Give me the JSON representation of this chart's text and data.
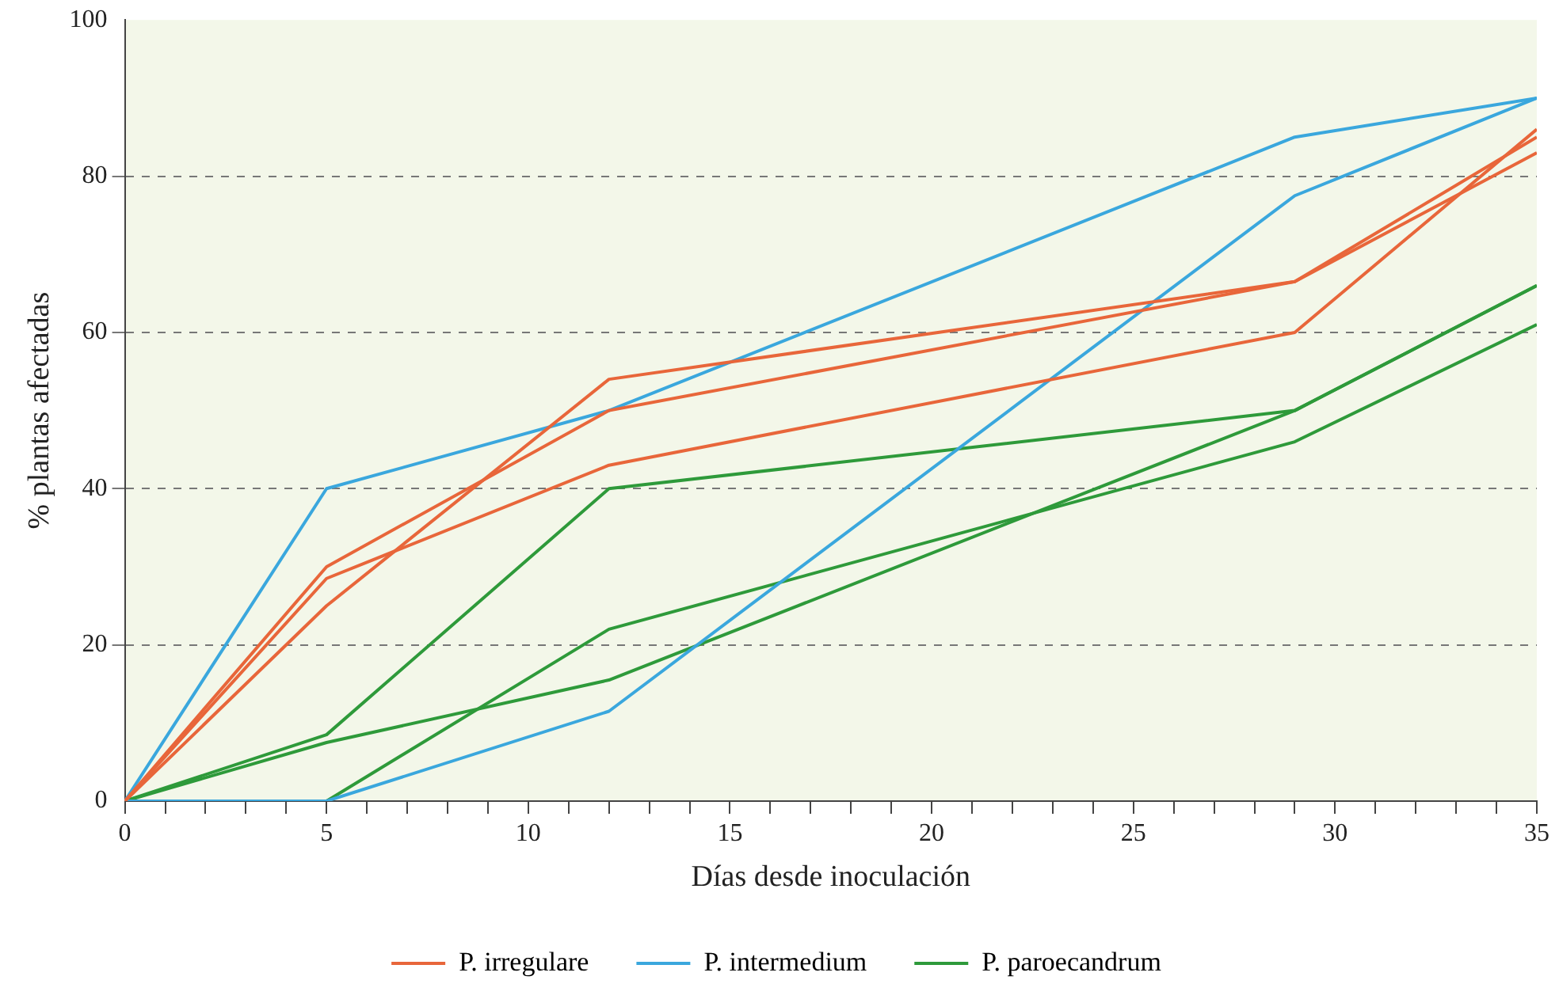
{
  "chart_data": {
    "type": "line",
    "xlabel": "Días desde inoculación",
    "ylabel": "% plantas afectadas",
    "x": [
      0,
      5,
      12,
      29,
      35
    ],
    "xlim": [
      0,
      35
    ],
    "xticks": [
      0,
      {
        "value": 1,
        "label": null
      },
      {
        "value": 2,
        "label": null
      },
      {
        "value": 3,
        "label": null
      },
      {
        "value": 4,
        "label": null
      },
      5,
      {
        "value": 6,
        "label": null
      },
      {
        "value": 7,
        "label": null
      },
      {
        "value": 8,
        "label": null
      },
      {
        "value": 9,
        "label": null
      },
      10,
      {
        "value": 11,
        "label": null
      },
      {
        "value": 12,
        "label": null
      },
      {
        "value": 13,
        "label": null
      },
      {
        "value": 14,
        "label": null
      },
      15,
      {
        "value": 16,
        "label": null
      },
      {
        "value": 17,
        "label": null
      },
      {
        "value": 18,
        "label": null
      },
      {
        "value": 19,
        "label": null
      },
      20,
      {
        "value": 21,
        "label": null
      },
      {
        "value": 22,
        "label": null
      },
      {
        "value": 23,
        "label": null
      },
      {
        "value": 24,
        "label": null
      },
      25,
      {
        "value": 26,
        "label": null
      },
      {
        "value": 27,
        "label": null
      },
      {
        "value": 28,
        "label": null
      },
      {
        "value": 29,
        "label": null
      },
      30,
      {
        "value": 31,
        "label": null
      },
      {
        "value": 32,
        "label": null
      },
      {
        "value": 33,
        "label": null
      },
      {
        "value": 34,
        "label": null
      },
      35
    ],
    "ylim": [
      0,
      100
    ],
    "yticks": [
      0,
      20,
      40,
      60,
      80,
      100
    ],
    "grid": "y",
    "legend": "bottom",
    "marker": "none",
    "line_style": "solid",
    "series": [
      {
        "name": "P. irregulare",
        "color": "#e8663a",
        "values": [
          0,
          30,
          50,
          66.5,
          85
        ]
      },
      {
        "color": "#e8663a",
        "values": [
          0,
          25,
          54,
          66.5,
          83
        ]
      },
      {
        "color": "#e8663a",
        "values": [
          0,
          28.5,
          43,
          60,
          86
        ]
      },
      {
        "name": "P. intermedium",
        "color": "#3aa7dd",
        "values": [
          0,
          40,
          50,
          85,
          90
        ]
      },
      {
        "color": "#3aa7dd",
        "values": [
          0,
          0,
          11.5,
          77.5,
          90
        ]
      },
      {
        "name": "P. paroecandrum",
        "color": "#2e9a3a",
        "values": [
          0,
          8.5,
          40,
          50,
          66
        ]
      },
      {
        "color": "#2e9a3a",
        "values": [
          0,
          7.5,
          15.5,
          50,
          66
        ]
      },
      {
        "color": "#2e9a3a",
        "values": [
          0,
          0,
          22,
          46,
          61
        ]
      }
    ]
  }
}
